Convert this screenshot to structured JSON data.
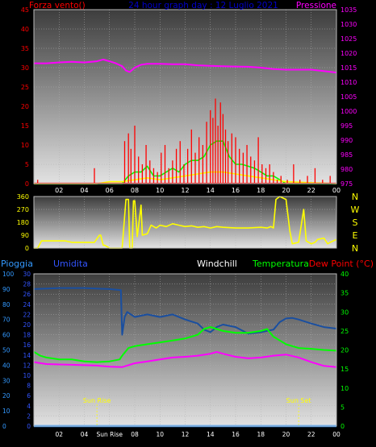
{
  "chart_data": [
    {
      "type": "line",
      "panel": "wind-pressure",
      "title": "24 hour graph day : 12 Luglio 2021",
      "left_label": "Forza vento()",
      "right_label": "Pressione",
      "x_ticks": [
        "02",
        "04",
        "06",
        "08",
        "10",
        "12",
        "14",
        "16",
        "18",
        "20",
        "22",
        "00"
      ],
      "left_axis": {
        "min": 0,
        "max": 45,
        "ticks": [
          0,
          5,
          10,
          15,
          20,
          25,
          30,
          35,
          40,
          45
        ]
      },
      "right_axis": {
        "min": 975,
        "max": 1035,
        "ticks": [
          975,
          980,
          985,
          990,
          995,
          1000,
          1005,
          1010,
          1015,
          1020,
          1025,
          1030,
          1035
        ]
      },
      "colors": {
        "wind": "#ff0000",
        "gust_avg": "#00ff00",
        "wind_avg": "#ffff00",
        "pressure": "#ff00ff",
        "left_text": "#ff0000",
        "right_text": "#ff00ff",
        "title": "#0000cc"
      },
      "series": [
        {
          "key": "pressure",
          "axis": "right",
          "x": [
            0,
            1,
            2,
            3,
            4,
            5,
            5.5,
            6,
            6.5,
            7,
            7.3,
            7.6,
            8,
            8.5,
            9,
            10,
            11,
            12,
            13,
            14,
            15,
            16,
            17,
            18,
            19,
            20,
            21,
            22,
            23,
            24
          ],
          "values": [
            1016.5,
            1016.5,
            1016.8,
            1017,
            1016.8,
            1017.2,
            1017.8,
            1017.2,
            1016.5,
            1015.5,
            1014,
            1013.5,
            1015,
            1016,
            1016.3,
            1016.3,
            1016.2,
            1016.2,
            1015.8,
            1015.6,
            1015.5,
            1015.4,
            1015.3,
            1015,
            1014.5,
            1014.3,
            1014.3,
            1014.3,
            1013.8,
            1013.3
          ]
        },
        {
          "key": "gust_avg",
          "axis": "left",
          "x": [
            0,
            5,
            6,
            7,
            7.5,
            8,
            8.5,
            9,
            9.5,
            10,
            10.5,
            11,
            11.5,
            12,
            12.5,
            13,
            13.5,
            14,
            14.5,
            15,
            15.5,
            16,
            16.5,
            17,
            17.5,
            18,
            18.5,
            19,
            19.5,
            20,
            24
          ],
          "values": [
            0,
            0,
            0,
            0,
            2,
            3,
            3,
            4.5,
            2,
            2,
            3,
            4,
            3,
            5,
            6,
            6,
            7,
            10,
            11,
            11,
            7,
            5,
            5,
            4.5,
            4,
            3,
            2,
            2,
            1,
            0,
            0
          ]
        },
        {
          "key": "wind_avg",
          "axis": "left",
          "x": [
            0,
            5,
            6,
            7,
            8,
            9,
            10,
            11,
            12,
            13,
            14,
            15,
            16,
            17,
            18,
            19,
            20,
            24
          ],
          "values": [
            0,
            0,
            0.5,
            0.5,
            1,
            1.5,
            1,
            1.5,
            2,
            2.5,
            3,
            3,
            2.5,
            2,
            1.5,
            1,
            0.5,
            0
          ]
        },
        {
          "key": "wind",
          "axis": "left",
          "style": "spikes",
          "x": [
            0.3,
            4.8,
            7.2,
            7.5,
            7.7,
            8.0,
            8.3,
            8.6,
            8.9,
            9.2,
            9.5,
            9.8,
            10.1,
            10.4,
            10.7,
            11.0,
            11.3,
            11.6,
            11.9,
            12.2,
            12.5,
            12.8,
            13.1,
            13.4,
            13.7,
            14.0,
            14.2,
            14.4,
            14.6,
            14.8,
            15.0,
            15.2,
            15.4,
            15.7,
            16.0,
            16.3,
            16.6,
            16.9,
            17.2,
            17.5,
            17.8,
            18.1,
            18.4,
            18.7,
            19.0,
            19.3,
            19.6,
            20.1,
            20.6,
            21.1,
            21.7,
            22.3,
            22.9,
            23.5
          ],
          "values": [
            1,
            4,
            11,
            13,
            9,
            15,
            7,
            5,
            10,
            6,
            4,
            3,
            8,
            10,
            4,
            6,
            9,
            11,
            5,
            9,
            14,
            8,
            12,
            10,
            16,
            19,
            17,
            22,
            15,
            21,
            18,
            14,
            11,
            13,
            12,
            9,
            8,
            10,
            7,
            6,
            12,
            5,
            4,
            5,
            3,
            1,
            2,
            1,
            5,
            1,
            2,
            4,
            1,
            2
          ]
        }
      ]
    },
    {
      "type": "line",
      "panel": "wind-direction",
      "left_axis": {
        "min": 0,
        "max": 360,
        "ticks": [
          0,
          90,
          180,
          270,
          360
        ]
      },
      "right_labels": [
        "N",
        "W",
        "S",
        "E",
        "N"
      ],
      "colors": {
        "direction": "#ffff00",
        "compass_text": "#ffff00"
      },
      "series": [
        {
          "key": "direction",
          "x": [
            0,
            0.3,
            0.6,
            2.5,
            3,
            4.8,
            5.2,
            5.3,
            5.5,
            5.6,
            6,
            7,
            7.3,
            7.5,
            7.6,
            7.8,
            7.9,
            8,
            8.2,
            8.3,
            8.5,
            8.6,
            9,
            9.3,
            9.5,
            9.7,
            10,
            10.5,
            11,
            11.5,
            12,
            12.5,
            13,
            13.5,
            14,
            14.5,
            15,
            16,
            17,
            18,
            18.5,
            18.8,
            19,
            19.2,
            19.5,
            20,
            20.3,
            20.5,
            21,
            21.4,
            21.6,
            22,
            22.3,
            22.5,
            23,
            23.3,
            23.5,
            24
          ],
          "values": [
            0,
            0,
            50,
            50,
            40,
            40,
            90,
            90,
            20,
            20,
            0,
            0,
            340,
            340,
            0,
            0,
            330,
            330,
            80,
            150,
            300,
            90,
            100,
            160,
            150,
            140,
            160,
            150,
            170,
            160,
            150,
            155,
            145,
            150,
            140,
            150,
            145,
            140,
            140,
            145,
            140,
            150,
            140,
            340,
            360,
            340,
            120,
            30,
            40,
            270,
            50,
            30,
            40,
            60,
            70,
            30,
            40,
            60
          ]
        }
      ]
    },
    {
      "type": "line",
      "panel": "temperature-humidity",
      "labels": {
        "rain": "Pioggia",
        "humidity": "Umidita",
        "windchill": "Windchill",
        "temperature": "Temperatura",
        "dew_point": "Dew Point (°C)"
      },
      "annotations": {
        "sunrise": "Sun Rise",
        "sunset": "Sun Set",
        "sunrise_x": 5.0,
        "sunset_x": 21.0
      },
      "x_ticks": [
        "02",
        "04",
        "Sun Rise",
        "08",
        "10",
        "12",
        "14",
        "16",
        "18",
        "20",
        "22",
        "00"
      ],
      "rain_axis": {
        "min": 0,
        "max": 100,
        "ticks": [
          0,
          10,
          20,
          30,
          40,
          50,
          60,
          70,
          80,
          90,
          100
        ]
      },
      "hum_axis": {
        "min": 0,
        "max": 30,
        "ticks": [
          0,
          2,
          4,
          6,
          8,
          10,
          12,
          14,
          16,
          18,
          20,
          22,
          24,
          26,
          28,
          30
        ]
      },
      "temp_axis": {
        "min": 0,
        "max": 40,
        "ticks": [
          0,
          5,
          10,
          15,
          20,
          25,
          30,
          35,
          40
        ]
      },
      "colors": {
        "rain": "#3399ff",
        "humidity": "#1a4fa0",
        "windchill": "#ffffff",
        "temperature": "#00ff00",
        "dew_point": "#ff00ff",
        "humidity_text": "#3355ff",
        "rain_text": "#3399ff",
        "temp_text": "#00ff00",
        "dew_text": "#ff0000",
        "sun_text": "#ffff00"
      },
      "series": [
        {
          "key": "humidity",
          "axis": "hum",
          "x": [
            0,
            2,
            4,
            6,
            6.9,
            7,
            7.2,
            7.4,
            8,
            9,
            10,
            11,
            12,
            13,
            13.5,
            14,
            14.5,
            15,
            16,
            17,
            18,
            19,
            19.5,
            20,
            20.5,
            21,
            22,
            23,
            24
          ],
          "values": [
            27,
            27.2,
            27.2,
            27,
            26.8,
            18,
            21.5,
            22.5,
            21.5,
            22,
            21.5,
            22,
            21,
            20.2,
            19,
            18.5,
            19.5,
            20,
            19.5,
            18.2,
            18.5,
            19,
            20.5,
            21.2,
            21.3,
            21,
            20.2,
            19.5,
            19.2
          ]
        },
        {
          "key": "temperature",
          "axis": "temp",
          "x": [
            0,
            0.5,
            1,
            2,
            3,
            4,
            5,
            6,
            6.8,
            7,
            7.5,
            8,
            9,
            10,
            11,
            12,
            13,
            13.5,
            14,
            14.5,
            15,
            16,
            17,
            18,
            18.5,
            19,
            19.5,
            20,
            21,
            22,
            23,
            24
          ],
          "values": [
            19.5,
            18.5,
            18,
            17.5,
            17.5,
            17,
            16.8,
            17,
            17.5,
            18.5,
            20.5,
            21,
            21.5,
            22,
            22.5,
            23,
            24,
            25.5,
            26,
            25.5,
            25,
            24.5,
            24.5,
            25,
            25.5,
            23.5,
            22.5,
            21.5,
            20.5,
            20.3,
            20,
            19.8
          ]
        },
        {
          "key": "dew_point",
          "axis": "temp",
          "x": [
            0,
            1,
            2,
            3,
            4,
            5,
            6,
            7,
            8,
            9,
            10,
            11,
            12,
            13,
            14,
            14.5,
            15,
            16,
            17,
            18,
            19,
            20,
            21,
            22,
            23,
            24
          ],
          "values": [
            16.8,
            16.3,
            16.2,
            16.1,
            16,
            15.9,
            15.6,
            15.5,
            16.5,
            17,
            17.5,
            18,
            18.2,
            18.5,
            19,
            19.5,
            19,
            18.2,
            17.8,
            18,
            18.5,
            18.8,
            18,
            16.8,
            15.8,
            15.5
          ]
        },
        {
          "key": "rain",
          "axis": "rain",
          "x": [
            0,
            24
          ],
          "values": [
            0,
            0
          ]
        }
      ]
    }
  ]
}
